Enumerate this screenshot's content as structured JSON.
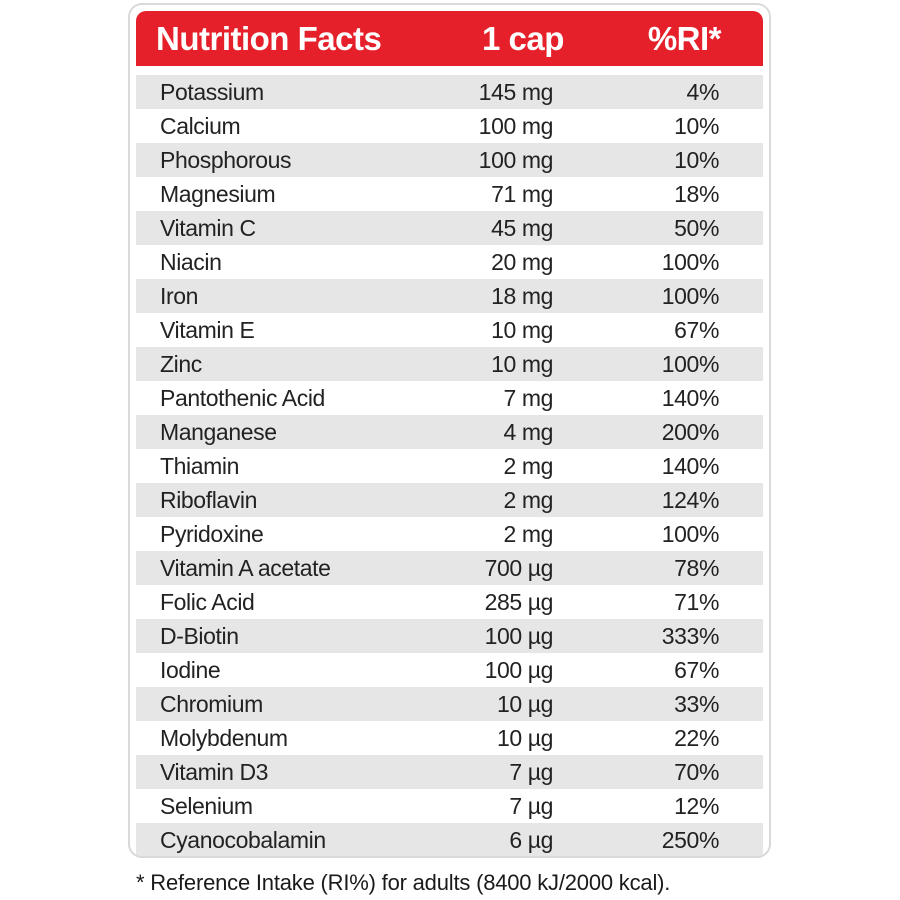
{
  "header": {
    "title": "Nutrition Facts",
    "amount_col": "1 cap",
    "ri_col": "%RI*"
  },
  "rows": [
    {
      "name": "Potassium",
      "amount": "145 mg",
      "ri": "4%"
    },
    {
      "name": "Calcium",
      "amount": "100 mg",
      "ri": "10%"
    },
    {
      "name": "Phosphorous",
      "amount": "100 mg",
      "ri": "10%"
    },
    {
      "name": "Magnesium",
      "amount": "71 mg",
      "ri": "18%"
    },
    {
      "name": "Vitamin C",
      "amount": "45 mg",
      "ri": "50%"
    },
    {
      "name": "Niacin",
      "amount": "20 mg",
      "ri": "100%"
    },
    {
      "name": "Iron",
      "amount": "18 mg",
      "ri": "100%"
    },
    {
      "name": "Vitamin E",
      "amount": "10 mg",
      "ri": "67%"
    },
    {
      "name": "Zinc",
      "amount": "10 mg",
      "ri": "100%"
    },
    {
      "name": "Pantothenic Acid",
      "amount": "7 mg",
      "ri": "140%"
    },
    {
      "name": "Manganese",
      "amount": "4 mg",
      "ri": "200%"
    },
    {
      "name": "Thiamin",
      "amount": "2 mg",
      "ri": "140%"
    },
    {
      "name": "Riboflavin",
      "amount": "2 mg",
      "ri": "124%"
    },
    {
      "name": "Pyridoxine",
      "amount": "2 mg",
      "ri": "100%"
    },
    {
      "name": "Vitamin A acetate",
      "amount": "700 µg",
      "ri": "78%"
    },
    {
      "name": "Folic Acid",
      "amount": "285 µg",
      "ri": "71%"
    },
    {
      "name": "D-Biotin",
      "amount": "100 µg",
      "ri": "333%"
    },
    {
      "name": "Iodine",
      "amount": "100 µg",
      "ri": "67%"
    },
    {
      "name": "Chromium",
      "amount": "10 µg",
      "ri": "33%"
    },
    {
      "name": "Molybdenum",
      "amount": "10 µg",
      "ri": "22%"
    },
    {
      "name": "Vitamin D3",
      "amount": "7 µg",
      "ri": "70%"
    },
    {
      "name": "Selenium",
      "amount": "7 µg",
      "ri": "12%"
    },
    {
      "name": "Cyanocobalamin",
      "amount": "6 µg",
      "ri": "250%"
    }
  ],
  "footnote": "* Reference Intake (RI%) for adults (8400 kJ/2000 kcal).",
  "colors": {
    "header_bg": "#e5202a",
    "header_text": "#ffffff",
    "row_alt_bg": "#e6e6e6",
    "border": "#d9d9d9"
  }
}
